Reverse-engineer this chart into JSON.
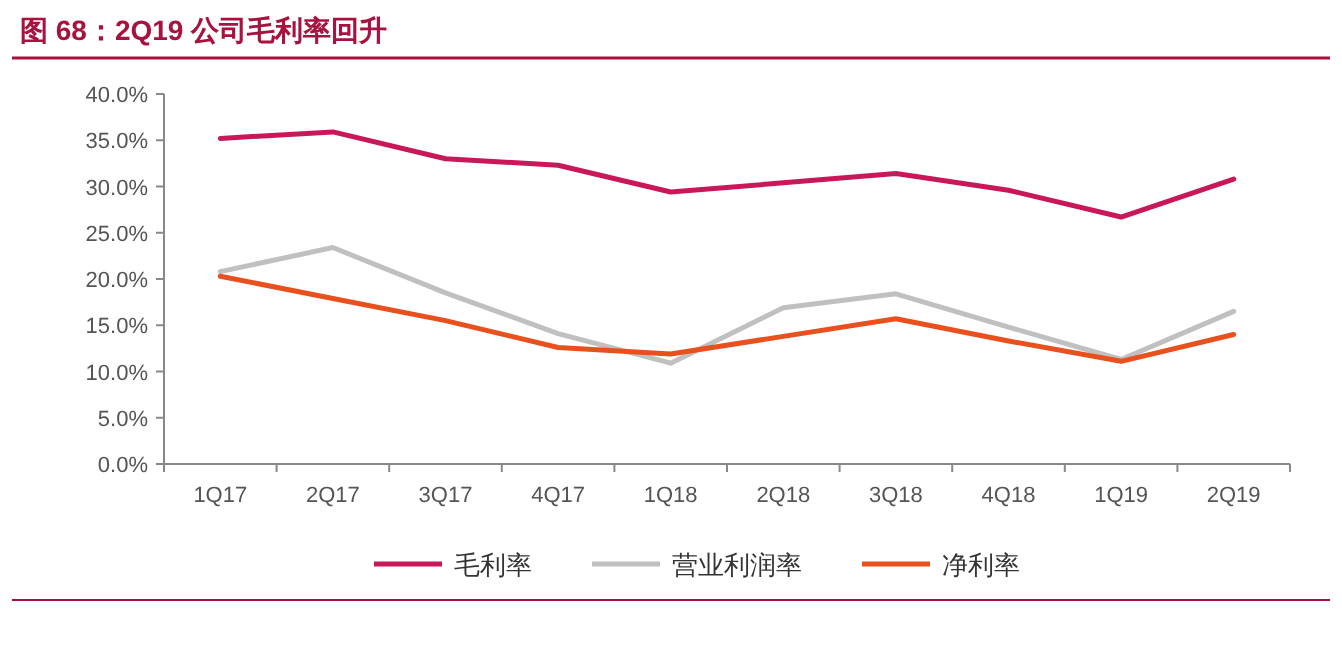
{
  "chart_data": {
    "type": "line",
    "title": "图 68：2Q19 公司毛利率回升",
    "categories": [
      "1Q17",
      "2Q17",
      "3Q17",
      "4Q17",
      "1Q18",
      "2Q18",
      "3Q18",
      "4Q18",
      "1Q19",
      "2Q19"
    ],
    "series": [
      {
        "name": "毛利率",
        "color": "#c8185a",
        "values": [
          35.2,
          35.9,
          33.0,
          32.3,
          29.4,
          30.4,
          31.4,
          29.6,
          26.7,
          30.8
        ]
      },
      {
        "name": "营业利润率",
        "color": "#c0c0c0",
        "values": [
          20.8,
          23.4,
          18.5,
          14.1,
          10.9,
          16.9,
          18.4,
          14.8,
          11.3,
          16.5
        ]
      },
      {
        "name": "净利率",
        "color": "#e8501e",
        "values": [
          20.3,
          17.9,
          15.5,
          12.6,
          11.9,
          13.8,
          15.7,
          13.3,
          11.1,
          14.0
        ]
      }
    ],
    "ylim": [
      0,
      40
    ],
    "yticks": [
      {
        "value": 0,
        "label": "0.0%"
      },
      {
        "value": 5,
        "label": "5.0%"
      },
      {
        "value": 10,
        "label": "10.0%"
      },
      {
        "value": 15,
        "label": "15.0%"
      },
      {
        "value": 20,
        "label": "20.0%"
      },
      {
        "value": 25,
        "label": "25.0%"
      },
      {
        "value": 30,
        "label": "30.0%"
      },
      {
        "value": 35,
        "label": "35.0%"
      },
      {
        "value": 40,
        "label": "40.0%"
      }
    ],
    "grid": false,
    "legend": "bottom",
    "marker": "none",
    "line_style": "solid"
  }
}
